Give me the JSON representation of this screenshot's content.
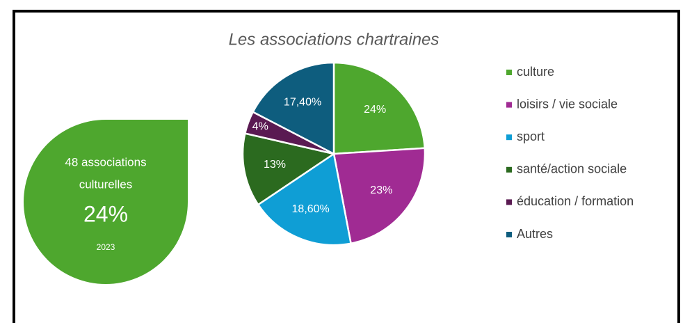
{
  "chart_data": {
    "type": "pie",
    "title": "Les associations chartraines",
    "categories": [
      "culture",
      "loisirs / vie sociale",
      "sport",
      "santé/action sociale",
      "éducation / formation",
      "Autres"
    ],
    "values": [
      24,
      23,
      18.6,
      13,
      4,
      17.4
    ],
    "value_labels": [
      "24%",
      "23%",
      "18,60%",
      "13%",
      "4%",
      "17,40%"
    ],
    "colors": [
      "#4ea72e",
      "#a02b93",
      "#0f9ed5",
      "#2b6a1f",
      "#5a1a52",
      "#0e5d7e"
    ],
    "legend": "right"
  },
  "callout": {
    "lines": [
      "48 associations",
      "culturelles"
    ],
    "value": "24%",
    "year": "2023",
    "color": "#4ea72e"
  }
}
